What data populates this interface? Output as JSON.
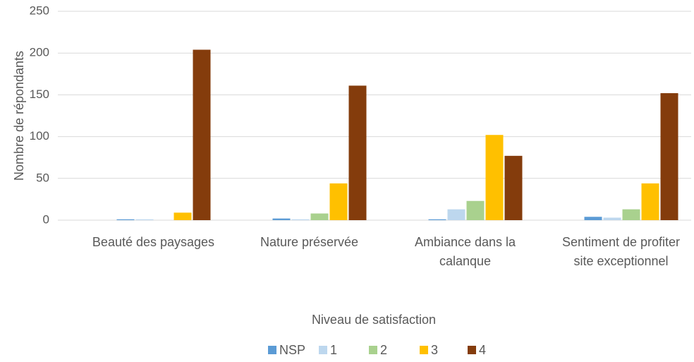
{
  "chart_data": {
    "type": "bar",
    "x_label": "Niveau de satisfaction",
    "y_label": "Nombre de répondants",
    "categories": [
      "Beauté des paysages",
      "Nature préservée",
      "Ambiance dans la calanque",
      "Sentiment de profiter site exceptionnel"
    ],
    "series": [
      {
        "name": "NSP",
        "color": "#5b9bd5",
        "values": [
          1,
          2,
          1,
          4
        ]
      },
      {
        "name": "1",
        "color": "#bdd7ee",
        "values": [
          1,
          1,
          13,
          3
        ]
      },
      {
        "name": "2",
        "color": "#a9d18e",
        "values": [
          0,
          8,
          23,
          13
        ]
      },
      {
        "name": "3",
        "color": "#ffc000",
        "values": [
          9,
          44,
          102,
          44
        ]
      },
      {
        "name": "4",
        "color": "#843c0c",
        "values": [
          204,
          161,
          77,
          152
        ]
      }
    ],
    "ylim": [
      0,
      250
    ],
    "yticks": [
      0,
      50,
      100,
      150,
      200,
      250
    ],
    "grid": true,
    "legend": "bottom"
  }
}
